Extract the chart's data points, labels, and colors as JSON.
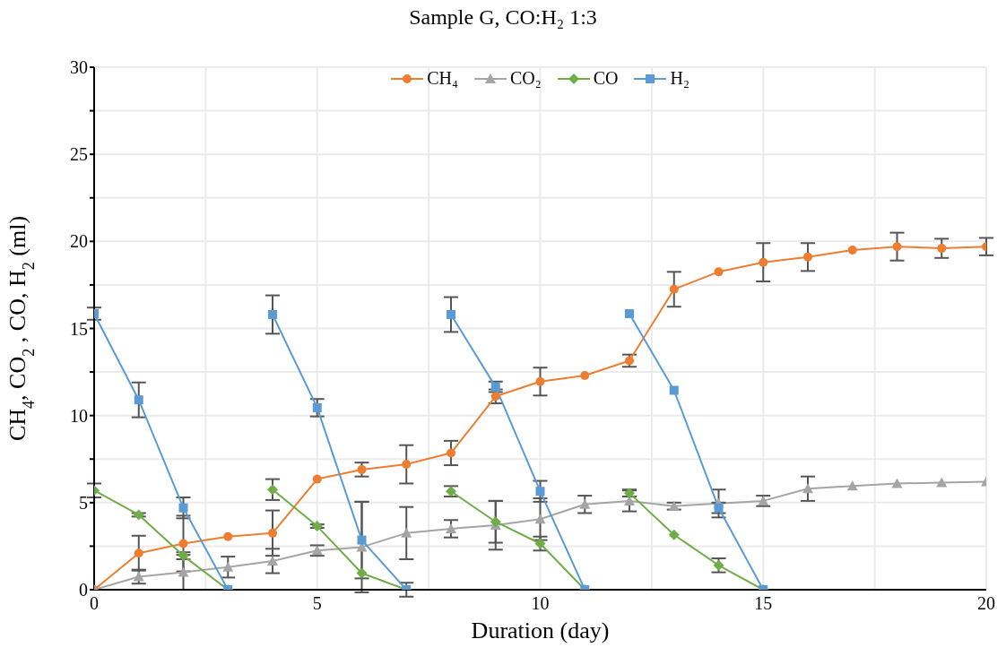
{
  "chart_data": {
    "type": "line",
    "title": "Sample G, CO:H₂ 1:3",
    "xlabel": "Duration (day)",
    "ylabel": "CH$_{4}$, CO$_{2}$ , CO, H$_{2}$  (ml)",
    "x": [
      0,
      1,
      2,
      3,
      4,
      5,
      6,
      7,
      8,
      9,
      10,
      11,
      12,
      13,
      14,
      15,
      16,
      17,
      18,
      19,
      20
    ],
    "series": [
      {
        "name": "CH₄",
        "color": "#ed7d31",
        "marker": "circle",
        "values": [
          0,
          2.1,
          2.65,
          3.05,
          3.25,
          6.35,
          6.9,
          7.2,
          7.85,
          11.1,
          11.95,
          12.3,
          13.15,
          17.25,
          18.25,
          18.8,
          19.1,
          19.5,
          19.7,
          19.6,
          19.7
        ],
        "errors": [
          null,
          1.0,
          1.6,
          null,
          1.3,
          null,
          0.4,
          1.1,
          0.7,
          0.4,
          0.8,
          null,
          0.35,
          1.0,
          null,
          1.1,
          0.8,
          null,
          0.8,
          0.55,
          0.5
        ]
      },
      {
        "name": "CO₂",
        "color": "#a5a5a5",
        "marker": "triangle",
        "values": [
          0,
          0.75,
          1.0,
          1.3,
          1.65,
          2.25,
          2.45,
          3.25,
          3.5,
          3.7,
          4.05,
          4.9,
          5.1,
          4.8,
          4.95,
          5.1,
          5.8,
          5.95,
          6.1,
          6.15,
          6.2
        ],
        "errors": [
          null,
          0.4,
          1.0,
          0.6,
          0.7,
          0.3,
          2.6,
          1.5,
          0.5,
          1.4,
          1.2,
          0.5,
          0.6,
          0.2,
          0.8,
          0.3,
          0.7,
          null,
          null,
          null,
          null
        ]
      },
      {
        "name": "CO",
        "color": "#70ad47",
        "marker": "diamond",
        "x": [
          0,
          1,
          2,
          3
        ],
        "values": [
          5.7,
          4.3,
          1.95,
          0
        ],
        "errors": [
          0.4,
          0.1,
          0.2,
          null
        ]
      },
      {
        "color": "#70ad47",
        "marker": "diamond",
        "x": [
          4,
          5,
          6,
          7
        ],
        "values": [
          5.75,
          3.65,
          0.95,
          0
        ],
        "errors": [
          0.6,
          0.1,
          null,
          null
        ]
      },
      {
        "color": "#70ad47",
        "marker": "diamond",
        "x": [
          8,
          9,
          10,
          11
        ],
        "values": [
          5.65,
          3.9,
          2.65,
          0
        ],
        "errors": [
          0.3,
          1.2,
          0.4,
          null
        ]
      },
      {
        "color": "#70ad47",
        "marker": "diamond",
        "x": [
          12,
          13,
          14,
          15
        ],
        "values": [
          5.55,
          3.15,
          1.4,
          0
        ],
        "errors": [
          0.2,
          null,
          0.4,
          null
        ]
      },
      {
        "name": "H₂",
        "color": "#5b9bd5",
        "marker": "square",
        "x": [
          0,
          1,
          2,
          3
        ],
        "values": [
          15.85,
          10.9,
          4.7,
          0
        ],
        "errors": [
          0.35,
          1.0,
          0.6,
          null
        ]
      },
      {
        "color": "#5b9bd5",
        "marker": "square",
        "x": [
          4,
          5,
          6,
          7
        ],
        "values": [
          15.8,
          10.45,
          2.85,
          0
        ],
        "errors": [
          1.1,
          0.5,
          2.2,
          0.4
        ]
      },
      {
        "color": "#5b9bd5",
        "marker": "square",
        "x": [
          8,
          9,
          10,
          11
        ],
        "values": [
          15.8,
          11.65,
          5.65,
          0
        ],
        "errors": [
          1.0,
          0.3,
          0.6,
          null
        ]
      },
      {
        "color": "#5b9bd5",
        "marker": "square",
        "x": [
          12,
          13,
          14,
          15
        ],
        "values": [
          15.85,
          11.45,
          4.7,
          0
        ],
        "errors": [
          null,
          null,
          0.3,
          null
        ]
      }
    ],
    "xlim": [
      0,
      20
    ],
    "xticks": [
      0,
      {
        "value": 2.5,
        "label": null
      },
      5,
      {
        "value": 7.5,
        "label": null
      },
      10,
      {
        "value": 12.5,
        "label": null
      },
      15,
      {
        "value": 17.5,
        "label": null
      },
      20
    ],
    "ylim": [
      0,
      30
    ],
    "yticks": [
      0,
      {
        "value": 2.5,
        "label": null
      },
      5,
      {
        "value": 7.5,
        "label": null
      },
      10,
      {
        "value": 12.5,
        "label": null
      },
      15,
      {
        "value": 17.5,
        "label": null
      },
      20,
      {
        "value": 22.5,
        "label": null
      },
      25,
      {
        "value": 27.5,
        "label": null
      },
      30
    ],
    "grid": true,
    "legend": "top",
    "line_style": "solid"
  }
}
